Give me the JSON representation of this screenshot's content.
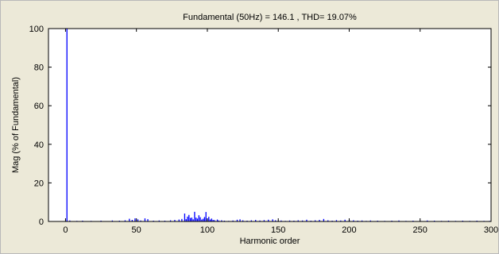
{
  "chart_data": {
    "type": "bar",
    "title": "Fundamental (50Hz) = 146.1 , THD= 19.07%",
    "xlabel": "Harmonic order",
    "ylabel": "Mag (% of Fundamental)",
    "xlim": [
      -12,
      300
    ],
    "ylim": [
      0,
      100
    ],
    "xticks": [
      0,
      50,
      100,
      150,
      200,
      250,
      300
    ],
    "yticks": [
      0,
      20,
      40,
      60,
      80,
      100
    ],
    "grid": false,
    "series": [
      {
        "color": "#0000ff",
        "x": [
          1,
          3,
          8,
          12,
          18,
          25,
          33,
          38,
          42,
          45,
          47,
          49,
          51,
          53,
          56,
          58,
          62,
          66,
          70,
          74,
          77,
          80,
          82,
          84,
          85,
          86,
          87,
          88,
          89,
          90,
          91,
          92,
          93,
          94,
          95,
          96,
          97,
          98,
          99,
          100,
          101,
          102,
          103,
          104,
          105,
          107,
          108,
          110,
          112,
          115,
          118,
          121,
          123,
          125,
          128,
          131,
          134,
          137,
          140,
          143,
          146,
          148,
          150,
          152,
          155,
          158,
          161,
          164,
          167,
          170,
          173,
          176,
          179,
          182,
          185,
          188,
          191,
          194,
          197,
          200,
          203,
          206,
          209,
          212,
          215,
          220,
          225,
          230,
          235,
          240,
          245,
          250,
          255,
          260,
          265,
          270,
          275,
          280,
          285,
          290,
          295,
          299
        ],
        "values": [
          100,
          0.5,
          0.3,
          0.4,
          0.3,
          0.4,
          0.5,
          0.4,
          0.6,
          1.4,
          0.8,
          1.6,
          1.1,
          0.5,
          1.6,
          1.2,
          0.4,
          0.5,
          0.4,
          0.6,
          0.8,
          1.0,
          1.3,
          4.1,
          1.2,
          2.5,
          3.4,
          1.8,
          2.0,
          1.1,
          5.0,
          2.0,
          1.5,
          3.2,
          2.2,
          1.0,
          1.4,
          2.3,
          4.9,
          1.6,
          2.4,
          1.0,
          1.5,
          0.8,
          0.7,
          1.0,
          0.5,
          0.6,
          0.4,
          0.3,
          0.5,
          0.9,
          1.1,
          0.6,
          0.4,
          0.6,
          0.8,
          0.5,
          0.7,
          0.9,
          1.1,
          0.6,
          0.4,
          0.5,
          0.3,
          0.5,
          0.4,
          0.6,
          0.5,
          0.9,
          0.4,
          0.6,
          0.8,
          1.3,
          0.6,
          0.4,
          0.7,
          0.5,
          0.9,
          0.8,
          0.6,
          0.4,
          0.5,
          0.3,
          0.5,
          0.4,
          0.3,
          0.4,
          0.5,
          0.3,
          0.4,
          0.3,
          0.5,
          0.4,
          0.3,
          0.4,
          0.3,
          0.4,
          0.3,
          0.4,
          0.3,
          0.3
        ]
      }
    ]
  }
}
